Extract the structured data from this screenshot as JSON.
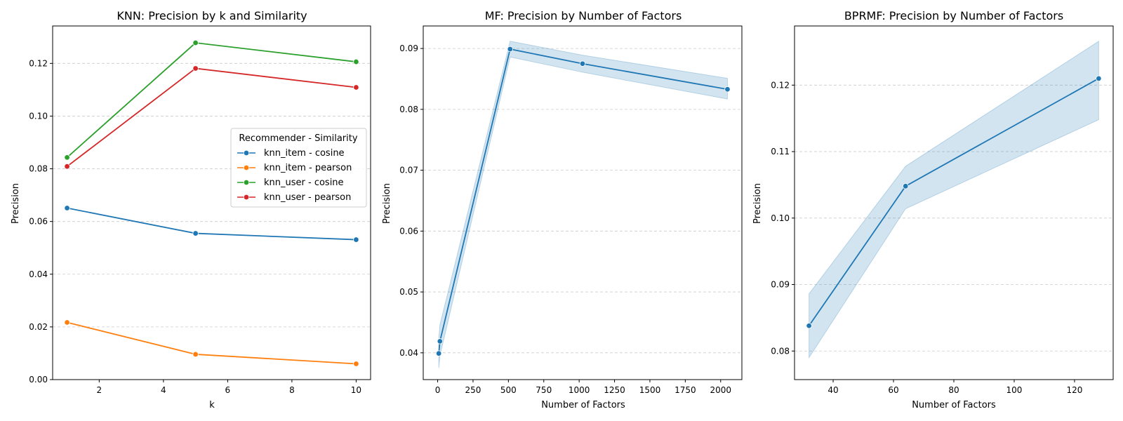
{
  "colors": {
    "blue": "#1f77b4",
    "orange": "#ff7f0e",
    "green": "#2ca02c",
    "red": "#d62728",
    "grid": "#cccccc",
    "band": "#1f77b4"
  },
  "chart_data": [
    {
      "type": "line",
      "title": "KNN: Precision by k and Similarity",
      "xlabel": "k",
      "ylabel": "Precision",
      "xlim": [
        0.55,
        10.45
      ],
      "ylim": [
        0,
        0.1342
      ],
      "xticks": [
        2,
        4,
        6,
        8,
        10
      ],
      "xtick_labels": [
        "2",
        "4",
        "6",
        "8",
        "10"
      ],
      "yticks": [
        0,
        0.02,
        0.04,
        0.06,
        0.08,
        0.1,
        0.12
      ],
      "ytick_labels": [
        "0.00",
        "0.02",
        "0.04",
        "0.06",
        "0.08",
        "0.10",
        "0.12"
      ],
      "grid": "horizontal dashed",
      "legend": {
        "title": "Recommender - Similarity",
        "placement": "center-right"
      },
      "series": [
        {
          "name": "knn_item - cosine",
          "color": "#1f77b4",
          "x": [
            1,
            5,
            10
          ],
          "y": [
            0.0651,
            0.0555,
            0.0531
          ]
        },
        {
          "name": "knn_item - pearson",
          "color": "#ff7f0e",
          "x": [
            1,
            5,
            10
          ],
          "y": [
            0.0217,
            0.0096,
            0.006
          ]
        },
        {
          "name": "knn_user - cosine",
          "color": "#2ca02c",
          "x": [
            1,
            5,
            10
          ],
          "y": [
            0.0843,
            0.1278,
            0.1206
          ]
        },
        {
          "name": "knn_user - pearson",
          "color": "#d62728",
          "x": [
            1,
            5,
            10
          ],
          "y": [
            0.0809,
            0.1181,
            0.1109
          ]
        }
      ]
    },
    {
      "type": "line",
      "title": "MF: Precision by Number of Factors",
      "xlabel": "Number of Factors",
      "ylabel": "Precision",
      "xlim": [
        -102,
        2150
      ],
      "ylim": [
        0.0356,
        0.0937
      ],
      "xticks": [
        0,
        250,
        500,
        750,
        1000,
        1250,
        1500,
        1750,
        2000
      ],
      "xtick_labels": [
        "0",
        "250",
        "500",
        "750",
        "1000",
        "1250",
        "1500",
        "1750",
        "2000"
      ],
      "yticks": [
        0.04,
        0.05,
        0.06,
        0.07,
        0.08,
        0.09
      ],
      "ytick_labels": [
        "0.04",
        "0.05",
        "0.06",
        "0.07",
        "0.08",
        "0.09"
      ],
      "grid": "horizontal dashed",
      "series": [
        {
          "color": "#1f77b4",
          "x": [
            8,
            16,
            512,
            1024,
            2048
          ],
          "y": [
            0.0399,
            0.0419,
            0.0899,
            0.0875,
            0.0833
          ],
          "ci_low": [
            0.0375,
            0.0395,
            0.0886,
            0.0861,
            0.0817
          ],
          "ci_high": [
            0.0424,
            0.0446,
            0.0912,
            0.0889,
            0.0851
          ]
        }
      ]
    },
    {
      "type": "line",
      "title": "BPRMF: Precision by Number of Factors",
      "xlabel": "Number of Factors",
      "ylabel": "Precision",
      "xlim": [
        27.2,
        132.8
      ],
      "ylim": [
        0.0757,
        0.1289
      ],
      "xticks": [
        40,
        60,
        80,
        100,
        120
      ],
      "xtick_labels": [
        "40",
        "60",
        "80",
        "100",
        "120"
      ],
      "yticks": [
        0.08,
        0.09,
        0.1,
        0.11,
        0.12
      ],
      "ytick_labels": [
        "0.08",
        "0.09",
        "0.10",
        "0.11",
        "0.12"
      ],
      "grid": "horizontal dashed",
      "series": [
        {
          "color": "#1f77b4",
          "x": [
            32,
            64,
            128
          ],
          "y": [
            0.0838,
            0.1048,
            0.121
          ],
          "ci_low": [
            0.079,
            0.1014,
            0.1148
          ],
          "ci_high": [
            0.0886,
            0.1078,
            0.1266
          ]
        }
      ]
    }
  ]
}
